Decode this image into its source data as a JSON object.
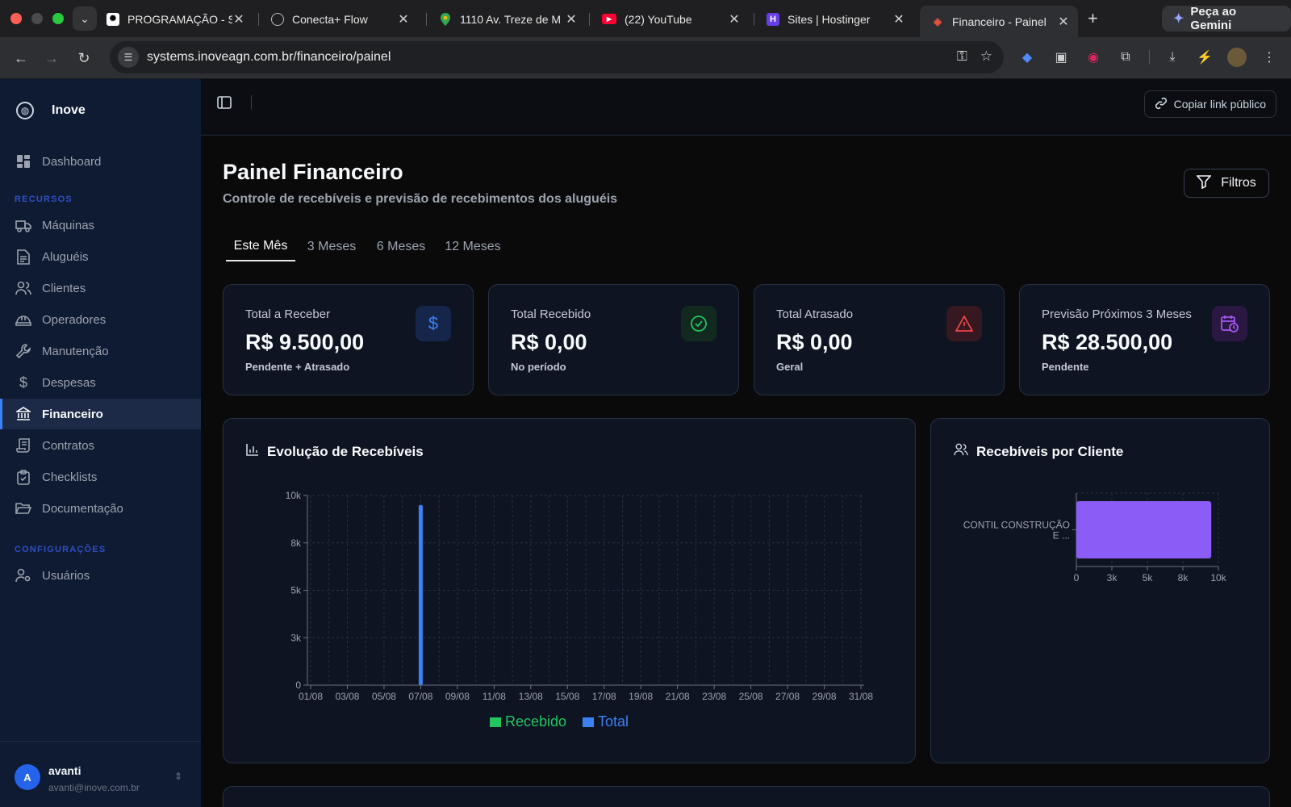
{
  "browser": {
    "tabs": [
      {
        "title": "PROGRAMAÇÃO - S",
        "icon": "openai-icon"
      },
      {
        "title": "Conecta+ Flow",
        "icon": "globe-icon"
      },
      {
        "title": "1110 Av. Treze de M",
        "icon": "maps-pin-icon"
      },
      {
        "title": "(22) YouTube",
        "icon": "youtube-icon"
      },
      {
        "title": "Sites | Hostinger",
        "icon": "hostinger-icon"
      },
      {
        "title": "Financeiro - Painel",
        "icon": "laravel-icon"
      }
    ],
    "gemini_label": "Peça ao Gemini",
    "url": "systems.inoveagn.com.br/financeiro/painel"
  },
  "sidebar": {
    "brand": "Inove",
    "dashboard": "Dashboard",
    "section_resources": "RECURSOS",
    "items": [
      {
        "label": "Máquinas",
        "icon": "truck-icon"
      },
      {
        "label": "Aluguéis",
        "icon": "file-text-icon"
      },
      {
        "label": "Clientes",
        "icon": "users-icon"
      },
      {
        "label": "Operadores",
        "icon": "hard-hat-icon"
      },
      {
        "label": "Manutenção",
        "icon": "wrench-icon"
      },
      {
        "label": "Despesas",
        "icon": "dollar-icon"
      },
      {
        "label": "Financeiro",
        "icon": "bank-icon"
      },
      {
        "label": "Contratos",
        "icon": "scroll-icon"
      },
      {
        "label": "Checklists",
        "icon": "clipboard-check-icon"
      },
      {
        "label": "Documentação",
        "icon": "folder-open-icon"
      }
    ],
    "section_settings": "CONFIGURAÇÕES",
    "settings_items": [
      {
        "label": "Usuários",
        "icon": "user-cog-icon"
      }
    ],
    "user": {
      "initial": "A",
      "name": "avanti",
      "email": "avanti@inove.com.br"
    }
  },
  "header": {
    "copy_link": "Copiar link público"
  },
  "page": {
    "title": "Painel Financeiro",
    "subtitle": "Controle de recebíveis e previsão de recebimentos dos aluguéis",
    "filters": "Filtros",
    "periods": [
      "Este Mês",
      "3 Meses",
      "6 Meses",
      "12 Meses"
    ],
    "active_period": "Este Mês"
  },
  "stats": [
    {
      "label": "Total a Receber",
      "value": "R$ 9.500,00",
      "sub": "Pendente + Atrasado",
      "icon": "dollar-icon",
      "color": "#3b82f6",
      "bg": "#15264a"
    },
    {
      "label": "Total Recebido",
      "value": "R$ 0,00",
      "sub": "No período",
      "icon": "check-circle-icon",
      "color": "#22c55e",
      "bg": "#11291f"
    },
    {
      "label": "Total Atrasado",
      "value": "R$ 0,00",
      "sub": "Geral",
      "icon": "alert-triangle-icon",
      "color": "#ef4444",
      "bg": "#361820"
    },
    {
      "label": "Previsão Próximos 3 Meses",
      "value": "R$ 28.500,00",
      "sub": "Pendente",
      "icon": "calendar-clock-icon",
      "color": "#a855f7",
      "bg": "#2a1842"
    }
  ],
  "panels": {
    "evolution_title": "Evolução de Recebíveis",
    "client_title": "Recebíveis por Cliente"
  },
  "chart_data": [
    {
      "type": "bar",
      "title": "Evolução de Recebíveis",
      "x": [
        "01/08",
        "02/08",
        "03/08",
        "04/08",
        "05/08",
        "06/08",
        "07/08",
        "08/08",
        "09/08",
        "10/08",
        "11/08",
        "12/08",
        "13/08",
        "14/08",
        "15/08",
        "16/08",
        "17/08",
        "18/08",
        "19/08",
        "20/08",
        "21/08",
        "22/08",
        "23/08",
        "24/08",
        "25/08",
        "26/08",
        "27/08",
        "28/08",
        "29/08",
        "30/08",
        "31/08"
      ],
      "x_tick_labels": [
        "01/08",
        "03/08",
        "05/08",
        "07/08",
        "09/08",
        "11/08",
        "13/08",
        "15/08",
        "17/08",
        "19/08",
        "21/08",
        "23/08",
        "25/08",
        "27/08",
        "29/08",
        "31/08"
      ],
      "series": [
        {
          "name": "Recebido",
          "color": "#22c55e",
          "values": [
            0,
            0,
            0,
            0,
            0,
            0,
            0,
            0,
            0,
            0,
            0,
            0,
            0,
            0,
            0,
            0,
            0,
            0,
            0,
            0,
            0,
            0,
            0,
            0,
            0,
            0,
            0,
            0,
            0,
            0,
            0
          ]
        },
        {
          "name": "Total",
          "color": "#3b82f6",
          "values": [
            0,
            0,
            0,
            0,
            0,
            0,
            9500,
            0,
            0,
            0,
            0,
            0,
            0,
            0,
            0,
            0,
            0,
            0,
            0,
            0,
            0,
            0,
            0,
            0,
            0,
            0,
            0,
            0,
            0,
            0,
            0
          ]
        }
      ],
      "ylim": [
        0,
        10000
      ],
      "y_ticks": [
        0,
        2500,
        5000,
        7500,
        10000
      ],
      "y_tick_labels": [
        "0",
        "3k",
        "5k",
        "8k",
        "10k"
      ],
      "grid": true,
      "legend": "bottom"
    },
    {
      "type": "bar",
      "orientation": "horizontal",
      "title": "Recebíveis por Cliente",
      "categories": [
        "CONTIL CONSTRUÇÃO E ..."
      ],
      "category_lines": [
        "CONTIL CONSTRUÇÃO",
        "E ..."
      ],
      "values": [
        9500
      ],
      "color": "#8b5cf6",
      "xlim": [
        0,
        10000
      ],
      "x_ticks": [
        0,
        2500,
        5000,
        7500,
        10000
      ],
      "x_tick_labels": [
        "0",
        "3k",
        "5k",
        "8k",
        "10k"
      ],
      "grid": true
    }
  ]
}
